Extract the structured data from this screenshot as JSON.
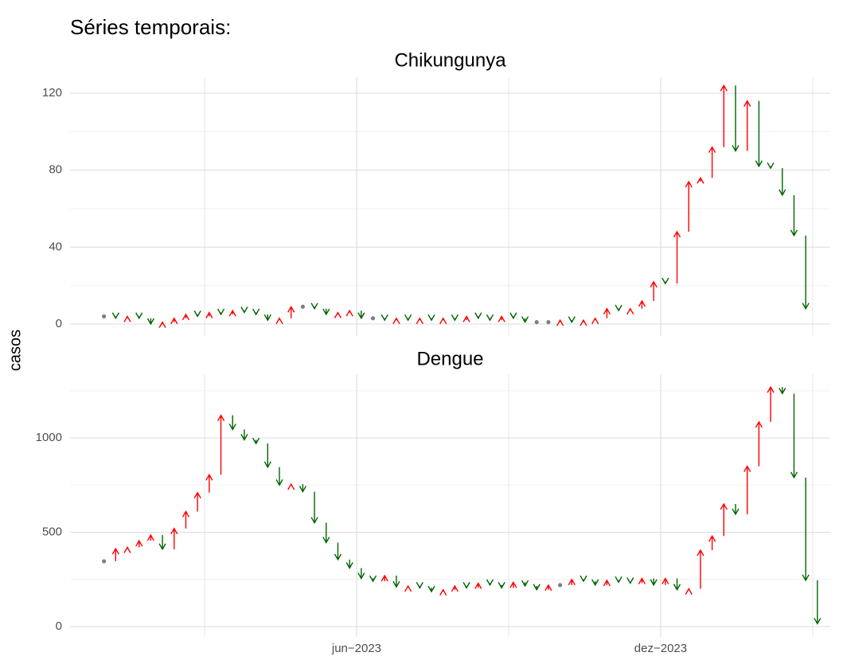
{
  "title": "Séries temporais:",
  "y_label": "casos",
  "chart_data": [
    {
      "type": "arrow",
      "title": "Chikungunya",
      "values": [
        4,
        3,
        4,
        3,
        0,
        1,
        3,
        5,
        4,
        6,
        5,
        7,
        6,
        5,
        2,
        3,
        9,
        9,
        8,
        5,
        6,
        7,
        3,
        3,
        2,
        3,
        2,
        3,
        2,
        3,
        2,
        4,
        3,
        2,
        4,
        3,
        1,
        1,
        1,
        2,
        1,
        2,
        3,
        8,
        7,
        8,
        12,
        22,
        21,
        48,
        74,
        76,
        92,
        124,
        90,
        116,
        82,
        81,
        67,
        46,
        8,
        null
      ],
      "ylim": [
        -6.2,
        128.3
      ],
      "yticks": [
        0,
        40,
        80,
        120
      ],
      "yminor": [
        20,
        60,
        100
      ],
      "xlim": [
        -2.9,
        62.1
      ],
      "grid": true,
      "up_color": "#ff0000",
      "down_color": "#006400",
      "flat_color": "#808080"
    },
    {
      "type": "arrow",
      "title": "Dengue",
      "values": [
        346,
        413,
        420,
        455,
        485,
        410,
        520,
        610,
        710,
        805,
        1120,
        1045,
        990,
        970,
        845,
        750,
        755,
        715,
        550,
        445,
        355,
        310,
        255,
        240,
        270,
        210,
        215,
        205,
        185,
        195,
        215,
        205,
        230,
        220,
        205,
        235,
        215,
        195,
        220,
        220,
        250,
        240,
        220,
        245,
        235,
        230,
        255,
        220,
        255,
        195,
        200,
        405,
        480,
        650,
        595,
        850,
        1085,
        1270,
        1235,
        790,
        245,
        15
      ],
      "ylim": [
        -55,
        1338
      ],
      "yticks": [
        0,
        500,
        1000
      ],
      "yminor": [
        250,
        750,
        1250
      ],
      "xlim": [
        -2.9,
        62.1
      ],
      "xticks": [
        {
          "value": 21.6,
          "label": "jun−2023"
        },
        {
          "value": 47.6,
          "label": "dez−2023"
        }
      ],
      "xminor": [
        8.6,
        34.6,
        60.6
      ],
      "grid": true,
      "up_color": "#ff0000",
      "down_color": "#006400",
      "flat_color": "#808080"
    }
  ]
}
